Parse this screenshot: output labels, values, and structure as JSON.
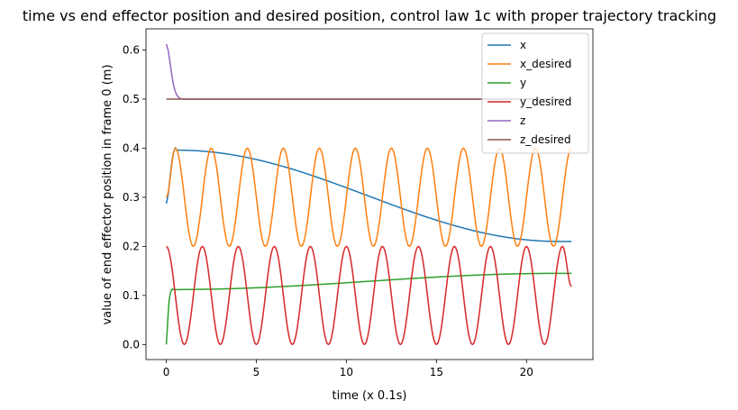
{
  "chart_data": {
    "type": "line",
    "title": "time vs end effector position and desired position, control law 1c with proper trajectory tracking",
    "xlabel": "time (x 0.1s)",
    "ylabel": "value of end effector position in frame 0 (m)",
    "xlim": [
      -1.13,
      23.69
    ],
    "ylim": [
      -0.0306,
      0.6432
    ],
    "xticks": [
      0,
      5,
      10,
      15,
      20
    ],
    "xtick_labels": [
      "0",
      "5",
      "10",
      "15",
      "20"
    ],
    "yticks": [
      0.0,
      0.1,
      0.2,
      0.3,
      0.4,
      0.5,
      0.6
    ],
    "ytick_labels": [
      "0.0",
      "0.1",
      "0.2",
      "0.3",
      "0.4",
      "0.5",
      "0.6"
    ],
    "grid": false,
    "legend_position": "top-right",
    "series": [
      {
        "name": "x",
        "color": "#1f77b4",
        "x": [
          0,
          0.1,
          0.2,
          0.3,
          0.4,
          0.5,
          0.6,
          21.8,
          22.0,
          22.2,
          22.5
        ],
        "y": [
          0.287,
          0.305,
          0.338,
          0.37,
          0.392,
          0.401,
          0.396,
          0.21,
          0.21,
          0.21,
          0.21
        ]
      },
      {
        "name": "x_desired",
        "color": "#ff7f0e",
        "x": [
          0,
          0.5,
          1.5,
          2.5,
          3.5,
          4.5,
          5.5,
          6.5,
          7.5,
          8.5,
          9.5,
          10.5,
          11.5,
          12.5,
          13.5,
          14.5,
          15.5,
          16.5,
          17.5,
          18.5,
          19.5,
          20.5,
          21.5,
          22.5
        ],
        "y": [
          0.3,
          0.4,
          0.2,
          0.4,
          0.2,
          0.4,
          0.2,
          0.4,
          0.2,
          0.4,
          0.2,
          0.4,
          0.2,
          0.4,
          0.2,
          0.4,
          0.2,
          0.4,
          0.2,
          0.4,
          0.2,
          0.4,
          0.2,
          0.4
        ]
      },
      {
        "name": "y",
        "color": "#2ca02c",
        "x": [
          0,
          0.05,
          0.1,
          0.15,
          0.2,
          0.25,
          0.3,
          0.35,
          0.4,
          21.8,
          22.0,
          22.2,
          22.5
        ],
        "y": [
          0.0,
          0.03,
          0.062,
          0.088,
          0.1,
          0.108,
          0.112,
          0.113,
          0.112,
          0.145,
          0.145,
          0.145,
          0.145
        ]
      },
      {
        "name": "y_desired",
        "color": "#d62728",
        "x": [
          0,
          1.0,
          2.0,
          3.0,
          4.0,
          5.0,
          6.0,
          7.0,
          8.0,
          9.0,
          10.0,
          11.0,
          12.0,
          13.0,
          14.0,
          15.0,
          16.0,
          17.0,
          18.0,
          19.0,
          20.0,
          21.0,
          22.0,
          22.5
        ],
        "y": [
          0.2,
          0.0,
          0.2,
          0.0,
          0.2,
          0.0,
          0.2,
          0.0,
          0.2,
          0.0,
          0.2,
          0.0,
          0.2,
          0.0,
          0.2,
          0.0,
          0.2,
          0.0,
          0.2,
          0.0,
          0.2,
          0.0,
          0.2,
          0.118
        ]
      },
      {
        "name": "z",
        "color": "#9467bd",
        "x": [
          0,
          0.1,
          0.2,
          0.3,
          0.4,
          0.5,
          0.6,
          0.7,
          0.8,
          0.9,
          1.0,
          1.2,
          1.5,
          22.5
        ],
        "y": [
          0.612,
          0.6,
          0.576,
          0.55,
          0.529,
          0.515,
          0.507,
          0.503,
          0.501,
          0.5,
          0.5,
          0.5,
          0.5,
          0.5
        ]
      },
      {
        "name": "z_desired",
        "color": "#8c564b",
        "x": [
          0,
          22.5
        ],
        "y": [
          0.5,
          0.5
        ]
      }
    ]
  }
}
